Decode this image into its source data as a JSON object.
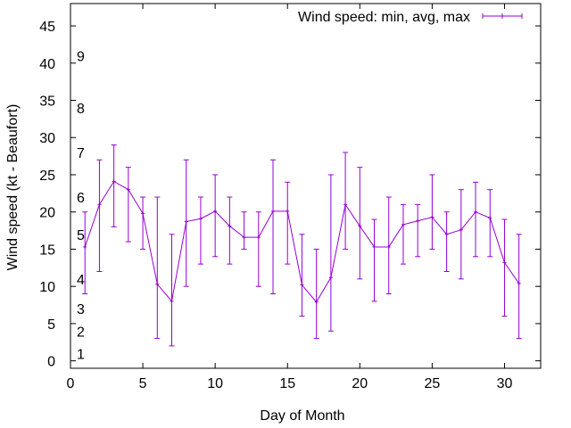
{
  "chart_data": {
    "type": "line",
    "title": "",
    "xlabel": "Day of Month",
    "ylabel": "Wind speed (kt - Beaufort)",
    "xlim": [
      0,
      32.5
    ],
    "ylim": [
      -1,
      48
    ],
    "x_ticks": [
      0,
      5,
      10,
      15,
      20,
      25,
      30
    ],
    "y_ticks": [
      0,
      5,
      10,
      15,
      20,
      25,
      30,
      35,
      40,
      45
    ],
    "grid": false,
    "legend_position": "top-right",
    "beaufort_labels": [
      {
        "label": "1",
        "y": 1
      },
      {
        "label": "2",
        "y": 4
      },
      {
        "label": "3",
        "y": 7
      },
      {
        "label": "4",
        "y": 11
      },
      {
        "label": "5",
        "y": 17
      },
      {
        "label": "6",
        "y": 22
      },
      {
        "label": "7",
        "y": 28
      },
      {
        "label": "8",
        "y": 34
      },
      {
        "label": "9",
        "y": 41
      }
    ],
    "series": [
      {
        "name": "Wind speed: min, avg, max",
        "color": "#9400d3",
        "points": [
          {
            "x": 1,
            "avg": 15.3,
            "min": 9,
            "max": 20
          },
          {
            "x": 2,
            "avg": 21.0,
            "min": 12,
            "max": 27
          },
          {
            "x": 3,
            "avg": 24.1,
            "min": 18,
            "max": 29
          },
          {
            "x": 4,
            "avg": 23.0,
            "min": 16,
            "max": 26
          },
          {
            "x": 5,
            "avg": 19.8,
            "min": 15,
            "max": 22
          },
          {
            "x": 6,
            "avg": 10.3,
            "min": 3,
            "max": 22
          },
          {
            "x": 7,
            "avg": 8.0,
            "min": 2,
            "max": 17
          },
          {
            "x": 8,
            "avg": 18.7,
            "min": 10,
            "max": 27
          },
          {
            "x": 9,
            "avg": 19.1,
            "min": 13,
            "max": 22
          },
          {
            "x": 10,
            "avg": 20.1,
            "min": 14,
            "max": 25
          },
          {
            "x": 11,
            "avg": 18.1,
            "min": 13,
            "max": 22
          },
          {
            "x": 12,
            "avg": 16.6,
            "min": 15,
            "max": 20
          },
          {
            "x": 13,
            "avg": 16.6,
            "min": 10,
            "max": 20
          },
          {
            "x": 14,
            "avg": 20.1,
            "min": 9,
            "max": 27
          },
          {
            "x": 15,
            "avg": 20.1,
            "min": 13,
            "max": 24
          },
          {
            "x": 16,
            "avg": 10.2,
            "min": 6,
            "max": 17
          },
          {
            "x": 17,
            "avg": 7.9,
            "min": 3,
            "max": 15
          },
          {
            "x": 18,
            "avg": 11.2,
            "min": 4,
            "max": 25
          },
          {
            "x": 19,
            "avg": 21.0,
            "min": 15,
            "max": 28
          },
          {
            "x": 20,
            "avg": 18.1,
            "min": 11,
            "max": 26
          },
          {
            "x": 21,
            "avg": 15.3,
            "min": 8,
            "max": 19
          },
          {
            "x": 22,
            "avg": 15.3,
            "min": 9,
            "max": 22
          },
          {
            "x": 23,
            "avg": 18.3,
            "min": 13,
            "max": 21
          },
          {
            "x": 24,
            "avg": 18.8,
            "min": 14,
            "max": 21
          },
          {
            "x": 25,
            "avg": 19.3,
            "min": 15,
            "max": 25
          },
          {
            "x": 26,
            "avg": 17.0,
            "min": 12,
            "max": 20
          },
          {
            "x": 27,
            "avg": 17.6,
            "min": 11,
            "max": 23
          },
          {
            "x": 28,
            "avg": 20.0,
            "min": 14,
            "max": 24
          },
          {
            "x": 29,
            "avg": 19.2,
            "min": 14,
            "max": 23
          },
          {
            "x": 30,
            "avg": 13.2,
            "min": 6,
            "max": 19
          },
          {
            "x": 31,
            "avg": 10.4,
            "min": 3,
            "max": 17
          }
        ]
      }
    ]
  }
}
